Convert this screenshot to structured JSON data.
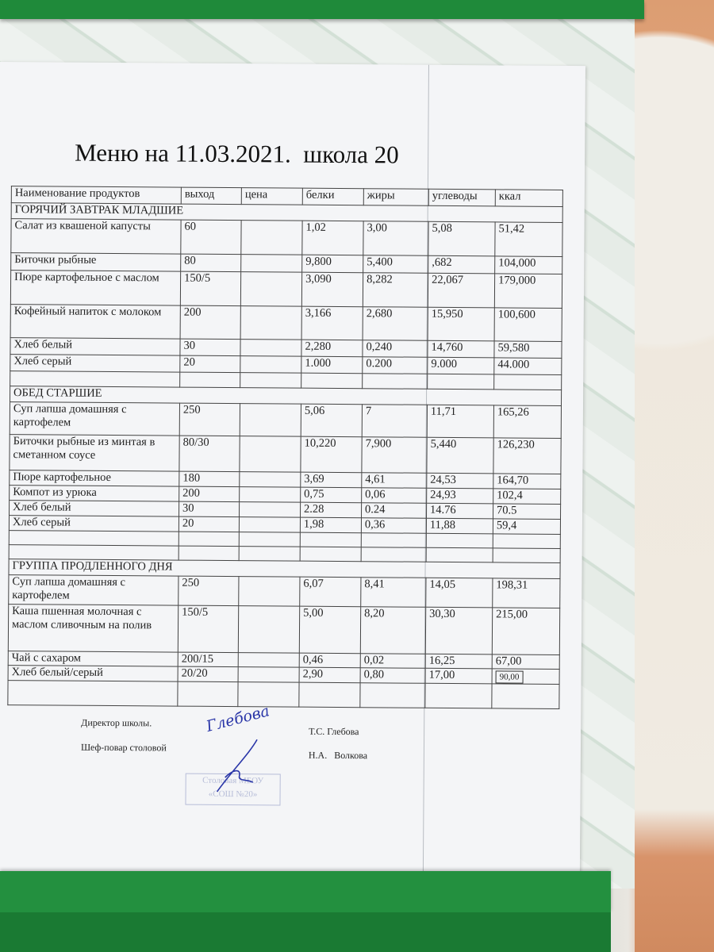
{
  "title": "Меню на 11.03.2021.  школа 20",
  "columns": [
    "Наименование продуктов",
    "выход",
    "цена",
    "белки",
    "жиры",
    "углеводы",
    "ккал"
  ],
  "sections": [
    {
      "name": "ГОРЯЧИЙ ЗАВТРАК МЛАДШИЕ",
      "rows": [
        [
          "Салат из квашеной капусты",
          "60",
          "",
          "1,02",
          "3,00",
          "5,08",
          "51,42"
        ],
        [
          "Биточки рыбные",
          "80",
          "",
          "9,800",
          "5,400",
          ",682",
          "104,000"
        ],
        [
          "Пюре картофельное с маслом",
          "150/5",
          "",
          "3,090",
          "8,282",
          "22,067",
          "179,000"
        ],
        [
          "Кофейный напиток с молоком",
          "200",
          "",
          "3,166",
          "2,680",
          "15,950",
          "100,600"
        ],
        [
          "Хлеб белый",
          "30",
          "",
          "2,280",
          "0,240",
          "14,760",
          "59,580"
        ],
        [
          "Хлеб серый",
          "20",
          "",
          "1.000",
          "0.200",
          "9.000",
          "44.000"
        ]
      ]
    },
    {
      "name": "ОБЕД СТАРШИЕ",
      "rows": [
        [
          "Суп лапша домашняя с картофелем",
          "250",
          "",
          "5,06",
          "7",
          "11,71",
          "165,26"
        ],
        [
          "Биточки рыбные из минтая в сметанном соусе",
          "80/30",
          "",
          "10,220",
          "7,900",
          "5,440",
          "126,230"
        ],
        [
          "Пюре картофельное",
          "180",
          "",
          "3,69",
          "4,61",
          "24,53",
          "164,70"
        ],
        [
          "Компот из урюка",
          "200",
          "",
          "0,75",
          "0,06",
          "24,93",
          "102,4"
        ],
        [
          "Хлеб белый",
          "30",
          "",
          "2.28",
          "0.24",
          "14.76",
          "70.5"
        ],
        [
          "Хлеб серый",
          "20",
          "",
          "1,98",
          "0,36",
          "11,88",
          "59,4"
        ]
      ]
    },
    {
      "name": "ГРУППА ПРОДЛЕННОГО ДНЯ",
      "rows": [
        [
          "Суп лапша домашняя с картофелем",
          "250",
          "",
          "6,07",
          "8,41",
          "14,05",
          "198,31"
        ],
        [
          "Каша пшенная молочная с маслом сливочным на полив",
          "150/5",
          "",
          "5,00",
          "8,20",
          "30,30",
          "215,00"
        ],
        [
          "Чай с сахаром",
          "200/15",
          "",
          "0,46",
          "0,02",
          "16,25",
          "67,00"
        ],
        [
          "Хлеб белый/серый",
          "20/20",
          "",
          "2,90",
          "0,80",
          "17,00",
          "90,00"
        ]
      ]
    }
  ],
  "footer": {
    "director_label": "Директор школы.",
    "chef_label": "Шеф-повар столовой",
    "director_name": "Т.С. Глебова",
    "chef_name": "Н.А.   Волкова",
    "signature": "Глебова",
    "stamp": "Столовая МБОУ «СОШ №20»"
  },
  "colors": {
    "frame": "#1f8a3a",
    "signature_ink": "#2a36a8"
  }
}
